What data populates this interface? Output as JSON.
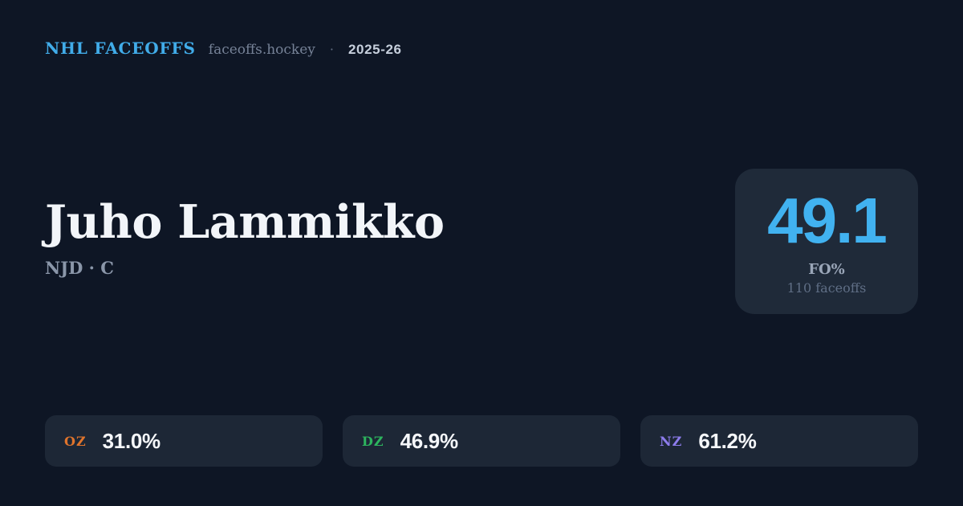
{
  "theme": {
    "background": "#0e1625",
    "card_background": "#1f2a39",
    "zone_card_background": "#1d2736",
    "accent_blue": "#41b2f0",
    "brand_blue": "#41ace9",
    "text_white": "#f2f5f9",
    "text_muted": "#8a96a9",
    "text_faint": "#5f6e85"
  },
  "header": {
    "brand": "NHL FACEOFFS",
    "domain": "faceoffs.hockey",
    "separator": "·",
    "season": "2025-26"
  },
  "player": {
    "name": "Juho Lammikko",
    "team_position": "NJD · C"
  },
  "summary": {
    "value": "49.1",
    "label": "FO%",
    "sublabel": "110 faceoffs"
  },
  "zones": [
    {
      "code": "OZ",
      "value": "31.0%",
      "color": "#e0742c"
    },
    {
      "code": "DZ",
      "value": "46.9%",
      "color": "#2db45e"
    },
    {
      "code": "NZ",
      "value": "61.2%",
      "color": "#8d7cec"
    }
  ]
}
